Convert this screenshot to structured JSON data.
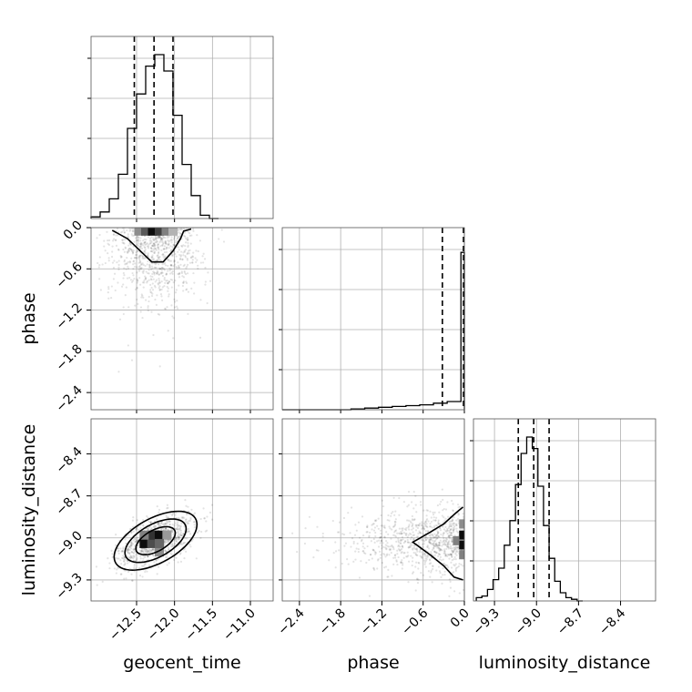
{
  "chart_data": {
    "type": "scatter",
    "subtype": "corner_plot",
    "parameters": [
      "geocent_time",
      "phase",
      "luminosity_distance"
    ],
    "axis_labels": {
      "x": [
        "geocent_time",
        "phase",
        "luminosity_distance"
      ],
      "y": [
        "",
        "phase",
        "luminosity_distance"
      ]
    },
    "ranges": {
      "geocent_time": [
        -13.1,
        -10.7
      ],
      "phase": [
        -2.65,
        0.0
      ],
      "luminosity_distance": [
        -9.45,
        -8.15
      ]
    },
    "ticks": {
      "geocent_time": [
        -12.5,
        -12.0,
        -11.5,
        -11.0
      ],
      "phase": [
        -2.4,
        -1.8,
        -1.2,
        -0.6,
        0.0
      ],
      "luminosity_distance": [
        -9.3,
        -9.0,
        -8.7,
        -8.4
      ]
    },
    "tick_labels": {
      "geocent_time": [
        "−12.5",
        "−12.0",
        "−11.5",
        "−11.0"
      ],
      "phase": [
        "−2.4",
        "−1.8",
        "−1.2",
        "−0.6",
        "0.0"
      ],
      "luminosity_distance": [
        "−9.3",
        "−9.0",
        "−8.7",
        "−8.4"
      ]
    },
    "grid": true,
    "histograms": {
      "geocent_time": {
        "bin_edges": [
          -13.1,
          -12.98,
          -12.86,
          -12.74,
          -12.62,
          -12.5,
          -12.38,
          -12.26,
          -12.14,
          -12.02,
          -11.9,
          -11.78,
          -11.66,
          -11.54,
          -11.42
        ],
        "density": [
          0.01,
          0.04,
          0.12,
          0.27,
          0.55,
          0.76,
          0.93,
          1.0,
          0.9,
          0.63,
          0.33,
          0.14,
          0.02,
          0.0
        ],
        "quantiles": [
          -12.53,
          -12.27,
          -12.02
        ]
      },
      "phase": {
        "bin_edges": [
          -2.65,
          -2.45,
          -2.25,
          -2.05,
          -1.85,
          -1.65,
          -1.45,
          -1.25,
          -1.05,
          -0.85,
          -0.65,
          -0.45,
          -0.25,
          -0.05,
          0.0
        ],
        "density": [
          0.0,
          0.0,
          0.0,
          0.0,
          0.0,
          0.005,
          0.01,
          0.015,
          0.02,
          0.025,
          0.03,
          0.04,
          0.05,
          0.96
        ],
        "quantiles": [
          -0.32,
          0.0
        ]
      },
      "luminosity_distance": {
        "bin_edges": [
          -9.43,
          -9.39,
          -9.35,
          -9.31,
          -9.27,
          -9.23,
          -9.19,
          -9.15,
          -9.11,
          -9.07,
          -9.03,
          -8.99,
          -8.95,
          -8.91,
          -8.87,
          -8.83,
          -8.79,
          -8.75,
          -8.71,
          -8.67
        ],
        "density": [
          0.02,
          0.03,
          0.07,
          0.13,
          0.2,
          0.34,
          0.49,
          0.71,
          0.9,
          1.0,
          0.93,
          0.7,
          0.46,
          0.26,
          0.12,
          0.05,
          0.02,
          0.01,
          0.0
        ],
        "quantiles": [
          -9.13,
          -9.02,
          -8.91
        ]
      }
    },
    "pairs": [
      {
        "x": "geocent_time",
        "y": "phase",
        "center": [
          -12.25,
          -0.08
        ],
        "sigma": [
          0.3,
          0.5
        ],
        "core_cells": [
          [
            -12.47,
            -0.05,
            0.45
          ],
          [
            -12.38,
            -0.05,
            0.65
          ],
          [
            -12.29,
            -0.05,
            0.95
          ],
          [
            -12.2,
            -0.05,
            0.75
          ],
          [
            -12.11,
            -0.05,
            0.5
          ],
          [
            -12.02,
            -0.05,
            0.3
          ]
        ],
        "contour_x": [
          -12.82,
          -12.62,
          -12.45,
          -12.3,
          -12.15,
          -12.02,
          -11.92,
          -11.88,
          -11.78
        ],
        "contour_y": [
          -0.04,
          -0.16,
          -0.34,
          -0.5,
          -0.5,
          -0.34,
          -0.16,
          -0.05,
          -0.02
        ]
      },
      {
        "x": "geocent_time",
        "y": "luminosity_distance",
        "center": [
          -12.25,
          -9.02
        ],
        "sigma": [
          0.26,
          0.1
        ],
        "correlation": 0.55,
        "core_cells": [
          [
            -12.4,
            -9.04,
            0.95
          ],
          [
            -12.3,
            -9.04,
            0.7
          ],
          [
            -12.3,
            -8.98,
            0.8
          ],
          [
            -12.2,
            -8.98,
            0.95
          ],
          [
            -12.2,
            -9.1,
            0.45
          ],
          [
            -12.4,
            -8.98,
            0.5
          ],
          [
            -12.1,
            -8.98,
            0.4
          ],
          [
            -12.2,
            -9.04,
            0.6
          ]
        ],
        "contour_levels": [
          1.0,
          1.55,
          2.1
        ]
      },
      {
        "x": "phase",
        "y": "luminosity_distance",
        "center": [
          -0.05,
          -9.02
        ],
        "sigma": [
          0.5,
          0.12
        ],
        "core_cells": [
          [
            -0.03,
            -9.05,
            0.95
          ],
          [
            -0.03,
            -8.98,
            0.95
          ],
          [
            -0.03,
            -9.12,
            0.5
          ],
          [
            -0.03,
            -8.9,
            0.45
          ],
          [
            -0.12,
            -9.02,
            0.5
          ]
        ],
        "contour_x": [
          -0.02,
          -0.12,
          -0.3,
          -0.5,
          -0.75,
          -0.5,
          -0.3,
          -0.15,
          -0.02
        ],
        "contour_y": [
          -8.78,
          -8.82,
          -8.9,
          -8.96,
          -9.03,
          -9.12,
          -9.2,
          -9.28,
          -9.3
        ]
      }
    ]
  }
}
